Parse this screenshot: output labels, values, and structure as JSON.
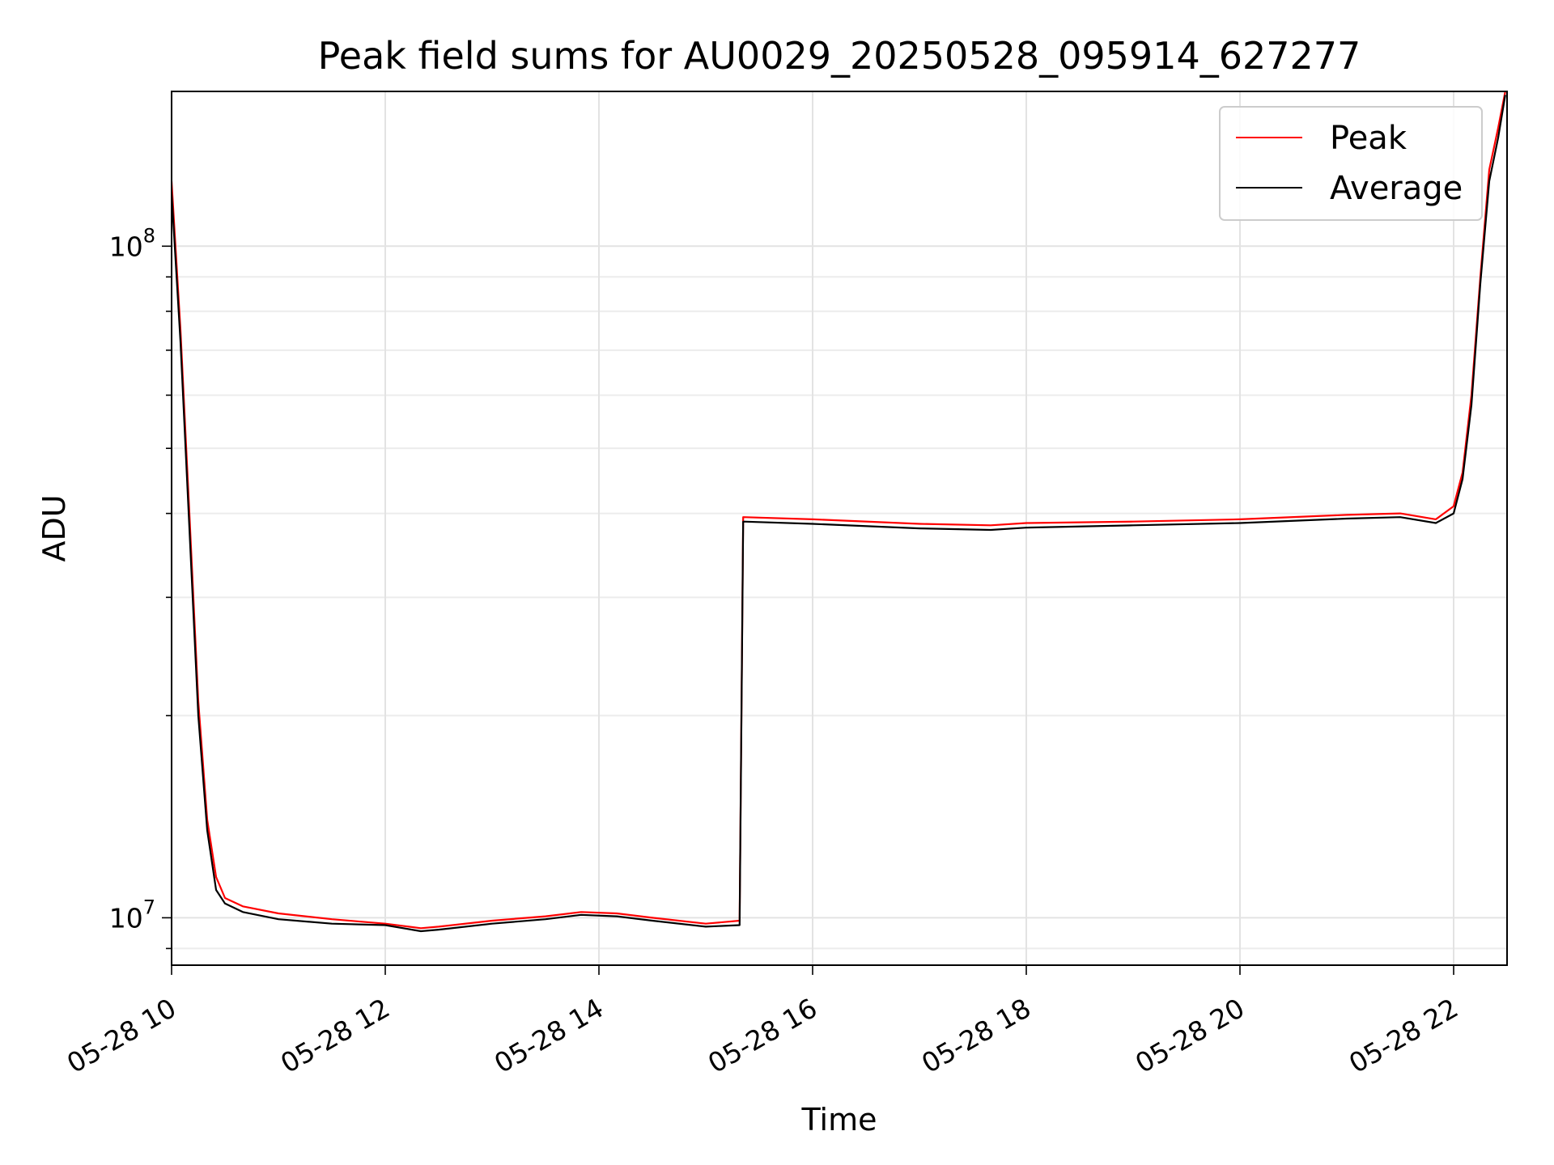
{
  "chart_data": {
    "type": "line",
    "title": "Peak field sums for AU0029_20250528_095914_627277",
    "xlabel": "Time",
    "ylabel": "ADU",
    "x_range": [
      "2025-05-28 10:00",
      "2025-05-28 22:30"
    ],
    "y_range": [
      8500000,
      170000000
    ],
    "y_scale": "log",
    "grid": true,
    "legend_position": "top-right",
    "x_ticks": [
      {
        "t": "2025-05-28 10:00",
        "label": "05-28 10"
      },
      {
        "t": "2025-05-28 12:00",
        "label": "05-28 12"
      },
      {
        "t": "2025-05-28 14:00",
        "label": "05-28 14"
      },
      {
        "t": "2025-05-28 16:00",
        "label": "05-28 16"
      },
      {
        "t": "2025-05-28 18:00",
        "label": "05-28 18"
      },
      {
        "t": "2025-05-28 20:00",
        "label": "05-28 20"
      },
      {
        "t": "2025-05-28 22:00",
        "label": "05-28 22"
      }
    ],
    "y_ticks": [
      {
        "value": 10000000,
        "base": "10",
        "exp": "7"
      },
      {
        "value": 100000000,
        "base": "10",
        "exp": "8"
      }
    ],
    "series": [
      {
        "name": "Peak",
        "color": "#ff0000",
        "points": [
          [
            "2025-05-28 10:00",
            125000000
          ],
          [
            "2025-05-28 10:05",
            75000000
          ],
          [
            "2025-05-28 10:10",
            40000000
          ],
          [
            "2025-05-28 10:15",
            21000000
          ],
          [
            "2025-05-28 10:20",
            14000000
          ],
          [
            "2025-05-28 10:25",
            11500000
          ],
          [
            "2025-05-28 10:30",
            10700000
          ],
          [
            "2025-05-28 10:40",
            10400000
          ],
          [
            "2025-05-28 11:00",
            10150000
          ],
          [
            "2025-05-28 11:30",
            9950000
          ],
          [
            "2025-05-28 12:00",
            9800000
          ],
          [
            "2025-05-28 12:20",
            9650000
          ],
          [
            "2025-05-28 12:30",
            9700000
          ],
          [
            "2025-05-28 13:00",
            9900000
          ],
          [
            "2025-05-28 13:30",
            10050000
          ],
          [
            "2025-05-28 13:50",
            10200000
          ],
          [
            "2025-05-28 14:10",
            10150000
          ],
          [
            "2025-05-28 14:30",
            10000000
          ],
          [
            "2025-05-28 15:00",
            9800000
          ],
          [
            "2025-05-28 15:19",
            9900000
          ],
          [
            "2025-05-28 15:21",
            39500000
          ],
          [
            "2025-05-28 16:00",
            39200000
          ],
          [
            "2025-05-28 17:00",
            38600000
          ],
          [
            "2025-05-28 17:40",
            38400000
          ],
          [
            "2025-05-28 18:00",
            38700000
          ],
          [
            "2025-05-28 19:00",
            38900000
          ],
          [
            "2025-05-28 20:00",
            39200000
          ],
          [
            "2025-05-28 21:00",
            39800000
          ],
          [
            "2025-05-28 21:30",
            40000000
          ],
          [
            "2025-05-28 21:50",
            39200000
          ],
          [
            "2025-05-28 22:00",
            41000000
          ],
          [
            "2025-05-28 22:05",
            46000000
          ],
          [
            "2025-05-28 22:10",
            60000000
          ],
          [
            "2025-05-28 22:15",
            90000000
          ],
          [
            "2025-05-28 22:20",
            130000000
          ],
          [
            "2025-05-28 22:25",
            150000000
          ],
          [
            "2025-05-28 22:29",
            170000000
          ]
        ]
      },
      {
        "name": "Average",
        "color": "#000000",
        "points": [
          [
            "2025-05-28 10:00",
            120000000
          ],
          [
            "2025-05-28 10:05",
            72000000
          ],
          [
            "2025-05-28 10:10",
            38000000
          ],
          [
            "2025-05-28 10:15",
            20000000
          ],
          [
            "2025-05-28 10:20",
            13500000
          ],
          [
            "2025-05-28 10:25",
            11000000
          ],
          [
            "2025-05-28 10:30",
            10500000
          ],
          [
            "2025-05-28 10:40",
            10200000
          ],
          [
            "2025-05-28 11:00",
            9950000
          ],
          [
            "2025-05-28 11:30",
            9800000
          ],
          [
            "2025-05-28 12:00",
            9750000
          ],
          [
            "2025-05-28 12:20",
            9550000
          ],
          [
            "2025-05-28 12:30",
            9600000
          ],
          [
            "2025-05-28 13:00",
            9800000
          ],
          [
            "2025-05-28 13:30",
            9950000
          ],
          [
            "2025-05-28 13:50",
            10100000
          ],
          [
            "2025-05-28 14:10",
            10050000
          ],
          [
            "2025-05-28 14:30",
            9900000
          ],
          [
            "2025-05-28 15:00",
            9700000
          ],
          [
            "2025-05-28 15:19",
            9750000
          ],
          [
            "2025-05-28 15:21",
            38900000
          ],
          [
            "2025-05-28 16:00",
            38600000
          ],
          [
            "2025-05-28 17:00",
            38000000
          ],
          [
            "2025-05-28 17:40",
            37800000
          ],
          [
            "2025-05-28 18:00",
            38100000
          ],
          [
            "2025-05-28 19:00",
            38400000
          ],
          [
            "2025-05-28 20:00",
            38700000
          ],
          [
            "2025-05-28 21:00",
            39300000
          ],
          [
            "2025-05-28 21:30",
            39500000
          ],
          [
            "2025-05-28 21:50",
            38700000
          ],
          [
            "2025-05-28 22:00",
            40000000
          ],
          [
            "2025-05-28 22:05",
            45000000
          ],
          [
            "2025-05-28 22:10",
            58000000
          ],
          [
            "2025-05-28 22:15",
            88000000
          ],
          [
            "2025-05-28 22:20",
            125000000
          ],
          [
            "2025-05-28 22:25",
            145000000
          ],
          [
            "2025-05-28 22:29",
            168000000
          ]
        ]
      }
    ]
  }
}
